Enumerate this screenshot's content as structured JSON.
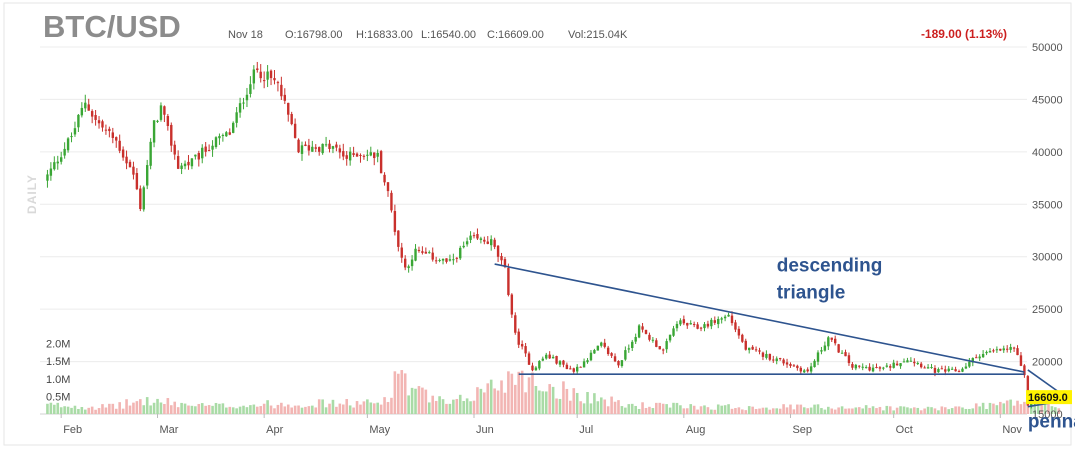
{
  "header": {
    "symbol": "BTC/USD",
    "date": "Nov 18",
    "open": "O:16798.00",
    "high": "H:16833.00",
    "low": "L:16540.00",
    "close": "C:16609.00",
    "volume": "Vol:215.04K",
    "change": "-189.00 (1.13%)"
  },
  "period_label": "DAILY",
  "last_price_label": "16609.0",
  "colors": {
    "up": "#3aa635",
    "down": "#c9302c",
    "trendline": "#2e548f",
    "change": "#cc1f1f",
    "last_price_bg": "#fff200"
  },
  "chart_data": {
    "type": "candlestick",
    "price_axis": {
      "ticks": [
        15000,
        20000,
        25000,
        30000,
        35000,
        40000,
        45000,
        50000
      ],
      "ylim": [
        15000,
        50000
      ]
    },
    "volume_axis": {
      "tick_labels": [
        "0.5M",
        "1.0M",
        "1.5M",
        "2.0M"
      ],
      "ticks": [
        500000,
        1000000,
        1500000,
        2000000
      ]
    },
    "x_axis": {
      "tick_labels": [
        "Feb",
        "Mar",
        "Apr",
        "May",
        "Jun",
        "Jul",
        "Aug",
        "Sep",
        "Oct",
        "Nov"
      ]
    },
    "close_path": [
      [
        "2022-01-28",
        37700
      ],
      [
        "2022-02-04",
        41500
      ],
      [
        "2022-02-08",
        44800
      ],
      [
        "2022-02-11",
        43000
      ],
      [
        "2022-02-17",
        41000
      ],
      [
        "2022-02-22",
        37800
      ],
      [
        "2022-02-24",
        34800
      ],
      [
        "2022-02-28",
        42600
      ],
      [
        "2022-03-02",
        44200
      ],
      [
        "2022-03-07",
        38600
      ],
      [
        "2022-03-11",
        39000
      ],
      [
        "2022-03-17",
        40800
      ],
      [
        "2022-03-22",
        41800
      ],
      [
        "2022-03-28",
        46800
      ],
      [
        "2022-03-30",
        47800
      ],
      [
        "2022-04-05",
        46400
      ],
      [
        "2022-04-11",
        40200
      ],
      [
        "2022-04-15",
        40500
      ],
      [
        "2022-04-21",
        40400
      ],
      [
        "2022-04-25",
        39400
      ],
      [
        "2022-04-28",
        39900
      ],
      [
        "2022-05-04",
        39600
      ],
      [
        "2022-05-07",
        36000
      ],
      [
        "2022-05-10",
        31000
      ],
      [
        "2022-05-12",
        28900
      ],
      [
        "2022-05-15",
        30500
      ],
      [
        "2022-05-25",
        29400
      ],
      [
        "2022-05-31",
        31700
      ],
      [
        "2022-06-06",
        31400
      ],
      [
        "2022-06-10",
        28700
      ],
      [
        "2022-06-13",
        22500
      ],
      [
        "2022-06-18",
        19300
      ],
      [
        "2022-06-22",
        20600
      ],
      [
        "2022-06-30",
        19100
      ],
      [
        "2022-07-08",
        21600
      ],
      [
        "2022-07-13",
        19700
      ],
      [
        "2022-07-19",
        23200
      ],
      [
        "2022-07-26",
        21000
      ],
      [
        "2022-07-30",
        23800
      ],
      [
        "2022-08-05",
        23200
      ],
      [
        "2022-08-14",
        24400
      ],
      [
        "2022-08-19",
        21200
      ],
      [
        "2022-08-29",
        20100
      ],
      [
        "2022-09-06",
        19000
      ],
      [
        "2022-09-12",
        22300
      ],
      [
        "2022-09-19",
        19500
      ],
      [
        "2022-09-28",
        19300
      ],
      [
        "2022-10-05",
        20300
      ],
      [
        "2022-10-13",
        19100
      ],
      [
        "2022-10-20",
        19100
      ],
      [
        "2022-10-26",
        20700
      ],
      [
        "2022-11-05",
        21300
      ],
      [
        "2022-11-08",
        18500
      ],
      [
        "2022-11-09",
        15900
      ],
      [
        "2022-11-12",
        16800
      ],
      [
        "2022-11-18",
        16609
      ]
    ],
    "volume_profile": [
      [
        "2022-01-28",
        250000
      ],
      [
        "2022-02-15",
        200000
      ],
      [
        "2022-02-25",
        380000
      ],
      [
        "2022-03-15",
        220000
      ],
      [
        "2022-04-11",
        300000
      ],
      [
        "2022-05-05",
        300000
      ],
      [
        "2022-05-09",
        900000
      ],
      [
        "2022-05-11",
        1500000
      ],
      [
        "2022-05-13",
        700000
      ],
      [
        "2022-05-25",
        250000
      ],
      [
        "2022-06-13",
        1100000
      ],
      [
        "2022-06-14",
        1300000
      ],
      [
        "2022-06-18",
        900000
      ],
      [
        "2022-07-15",
        250000
      ],
      [
        "2022-08-15",
        200000
      ],
      [
        "2022-09-15",
        200000
      ],
      [
        "2022-10-15",
        150000
      ],
      [
        "2022-11-08",
        350000
      ],
      [
        "2022-11-09",
        600000
      ],
      [
        "2022-11-10",
        400000
      ],
      [
        "2022-11-18",
        200000
      ]
    ],
    "trendlines": [
      {
        "points": [
          [
            "2022-06-07",
            29300
          ],
          [
            "2022-11-08",
            19000
          ]
        ]
      },
      {
        "points": [
          [
            "2022-06-14",
            18800
          ],
          [
            "2022-11-08",
            18800
          ]
        ]
      },
      {
        "points": [
          [
            "2022-11-09",
            19200
          ],
          [
            "2022-11-18",
            17100
          ]
        ]
      },
      {
        "points": [
          [
            "2022-11-09",
            15700
          ],
          [
            "2022-11-18",
            16200
          ]
        ]
      }
    ],
    "annotations": [
      {
        "text": "descending",
        "x": "2022-08-28",
        "y": 28600
      },
      {
        "text": "triangle",
        "x": "2022-08-28",
        "y": 26000
      },
      {
        "text": "pennant",
        "x": "2022-11-09",
        "y": 13700
      }
    ],
    "last_price": 16609
  }
}
